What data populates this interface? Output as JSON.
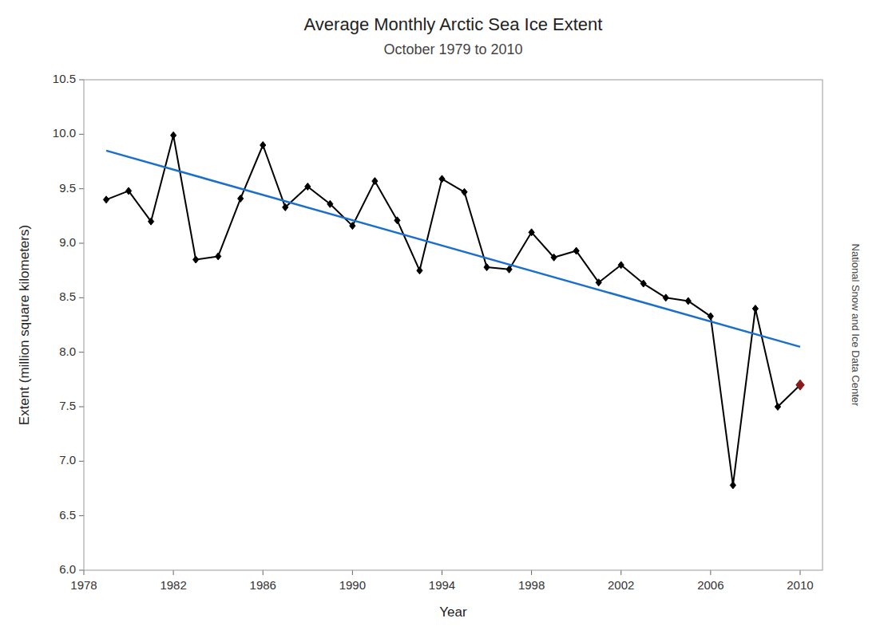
{
  "chart_data": {
    "type": "line",
    "title": "Average Monthly Arctic Sea Ice Extent",
    "subtitle": "October 1979 to 2010",
    "x_label": "Year",
    "y_label": "Extent (million square kilometers)",
    "annotations": [
      "National Snow and Ice Data Center"
    ],
    "x": [
      1979,
      1980,
      1981,
      1982,
      1983,
      1984,
      1985,
      1986,
      1987,
      1988,
      1989,
      1990,
      1991,
      1992,
      1993,
      1994,
      1995,
      1996,
      1997,
      1998,
      1999,
      2000,
      2001,
      2002,
      2003,
      2004,
      2005,
      2006,
      2007,
      2008,
      2009,
      2010
    ],
    "series": [
      {
        "color": "#000000",
        "marker": "diamond",
        "line_style": "solid",
        "colors": [
          "#000000",
          "#000000",
          "#000000",
          "#000000",
          "#000000",
          "#000000",
          "#000000",
          "#000000",
          "#000000",
          "#000000",
          "#000000",
          "#000000",
          "#000000",
          "#000000",
          "#000000",
          "#000000",
          "#000000",
          "#000000",
          "#000000",
          "#000000",
          "#000000",
          "#000000",
          "#000000",
          "#000000",
          "#000000",
          "#000000",
          "#000000",
          "#000000",
          "#000000",
          "#000000",
          "#000000",
          "#8B1A1A"
        ],
        "values": [
          9.4,
          9.48,
          9.2,
          9.99,
          8.85,
          8.88,
          9.41,
          9.9,
          9.33,
          9.52,
          9.36,
          9.16,
          9.57,
          9.21,
          8.75,
          9.59,
          9.47,
          8.78,
          8.76,
          9.1,
          8.87,
          8.93,
          8.64,
          8.8,
          8.63,
          8.5,
          8.47,
          8.33,
          6.78,
          8.4,
          7.5,
          7.7
        ]
      },
      {
        "color": "#1a6fcc",
        "marker": "none",
        "line_style": "solid",
        "x": [
          1979,
          2010
        ],
        "values": [
          9.85,
          8.05
        ]
      }
    ],
    "xlim": [
      1978,
      2011
    ],
    "ylim": [
      6.0,
      10.5
    ],
    "xticks": [
      1978,
      1982,
      1986,
      1990,
      1994,
      1998,
      2002,
      2006,
      2010
    ],
    "yticks": [
      {
        "value": 6.0,
        "label": "6.0"
      },
      6.5,
      {
        "value": 7.0,
        "label": "7.0"
      },
      7.5,
      {
        "value": 8.0,
        "label": "8.0"
      },
      8.5,
      {
        "value": 9.0,
        "label": "9.0"
      },
      9.5,
      {
        "value": 10.0,
        "label": "10.0"
      },
      10.5
    ],
    "grid": false
  }
}
